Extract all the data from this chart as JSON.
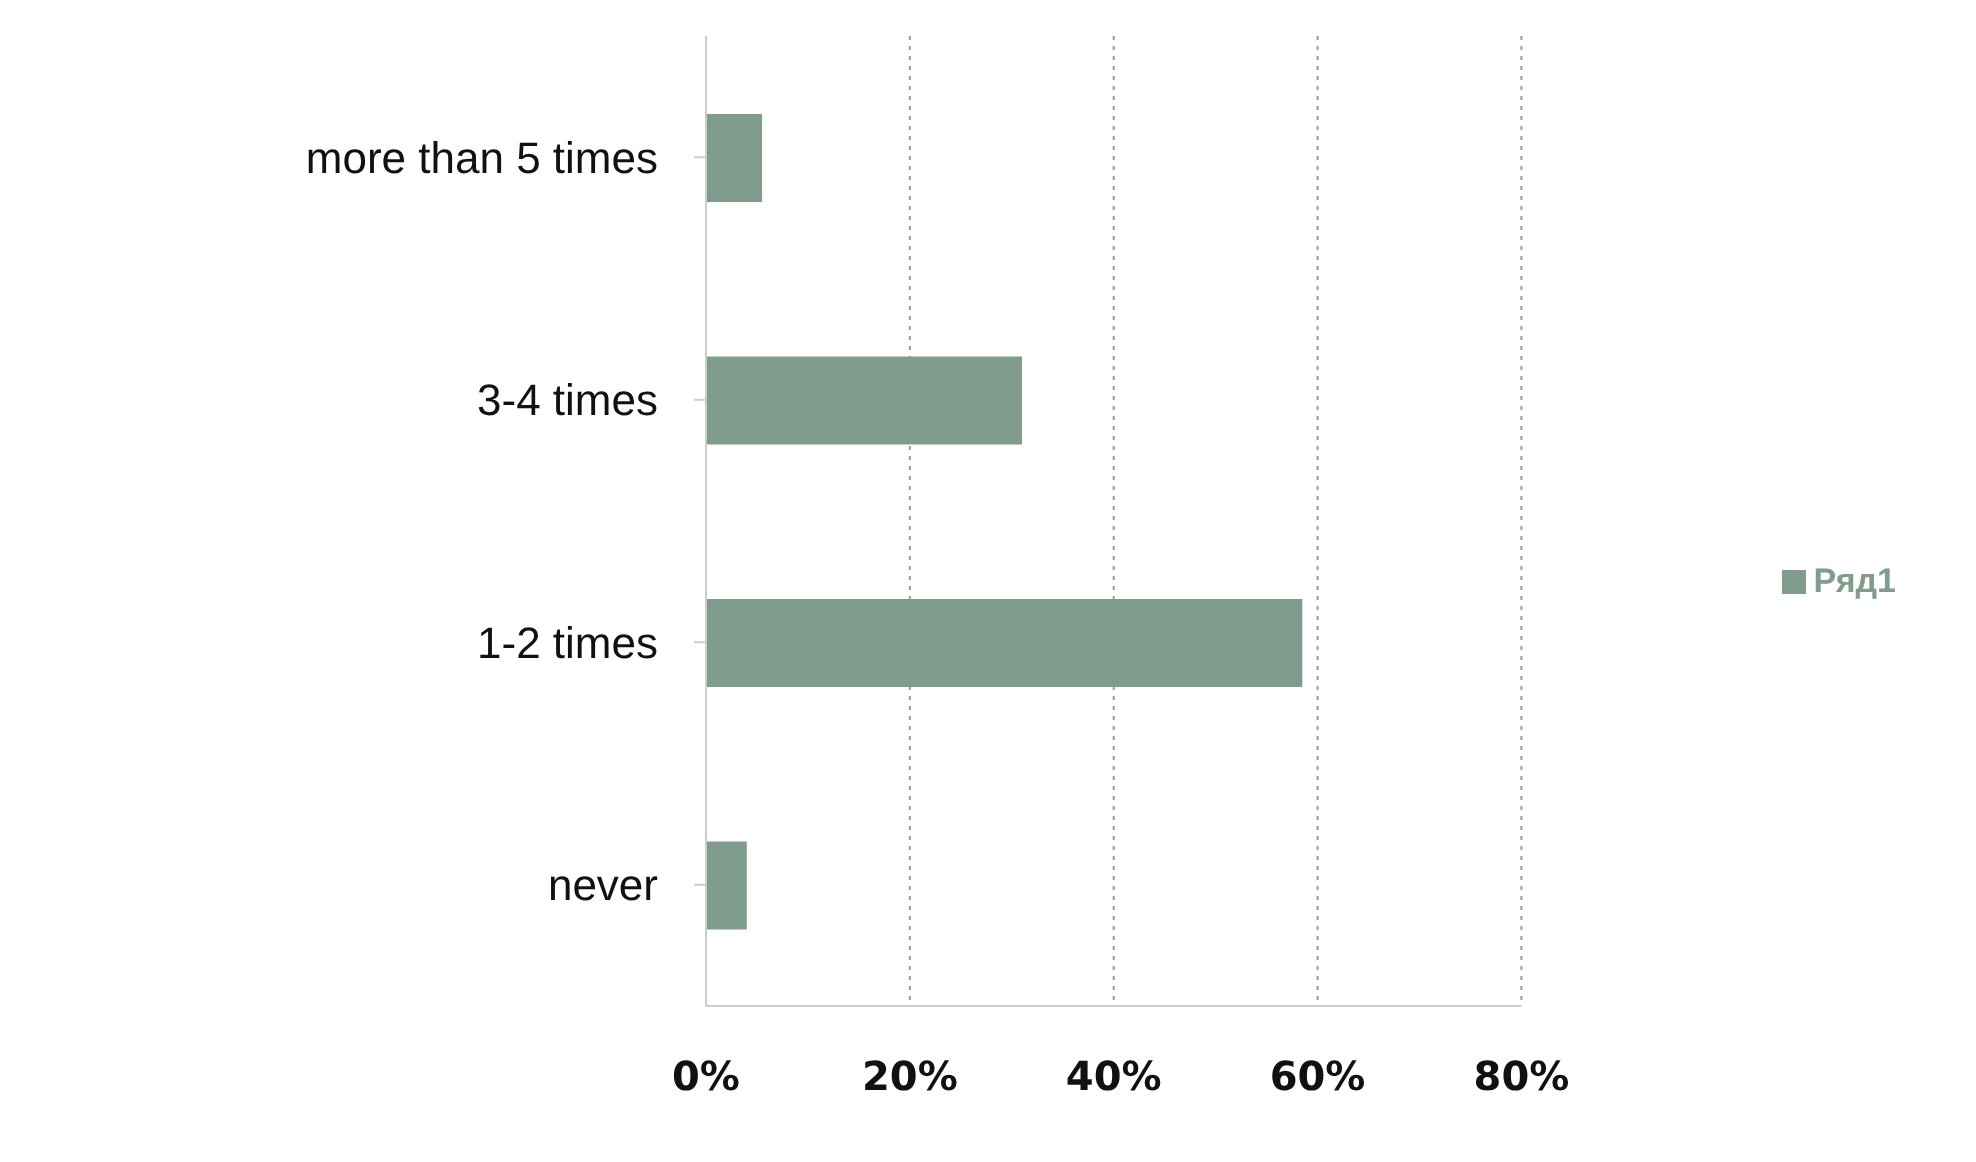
{
  "chart_data": {
    "type": "bar",
    "orientation": "horizontal",
    "categories": [
      "more than 5 times",
      "3-4 times",
      "1-2 times",
      "never"
    ],
    "series": [
      {
        "name": "Ряд1",
        "color": "#7f9c8c",
        "values": [
          5.5,
          31,
          58.5,
          4
        ]
      }
    ],
    "xlim": [
      0,
      80
    ],
    "xticks": [
      {
        "value": 0,
        "label": "0%"
      },
      {
        "value": 20,
        "label": "20%"
      },
      {
        "value": 40,
        "label": "40%"
      },
      {
        "value": 60,
        "label": "60%"
      },
      {
        "value": 80,
        "label": "80%"
      }
    ],
    "grid": "x",
    "legend": "right"
  }
}
